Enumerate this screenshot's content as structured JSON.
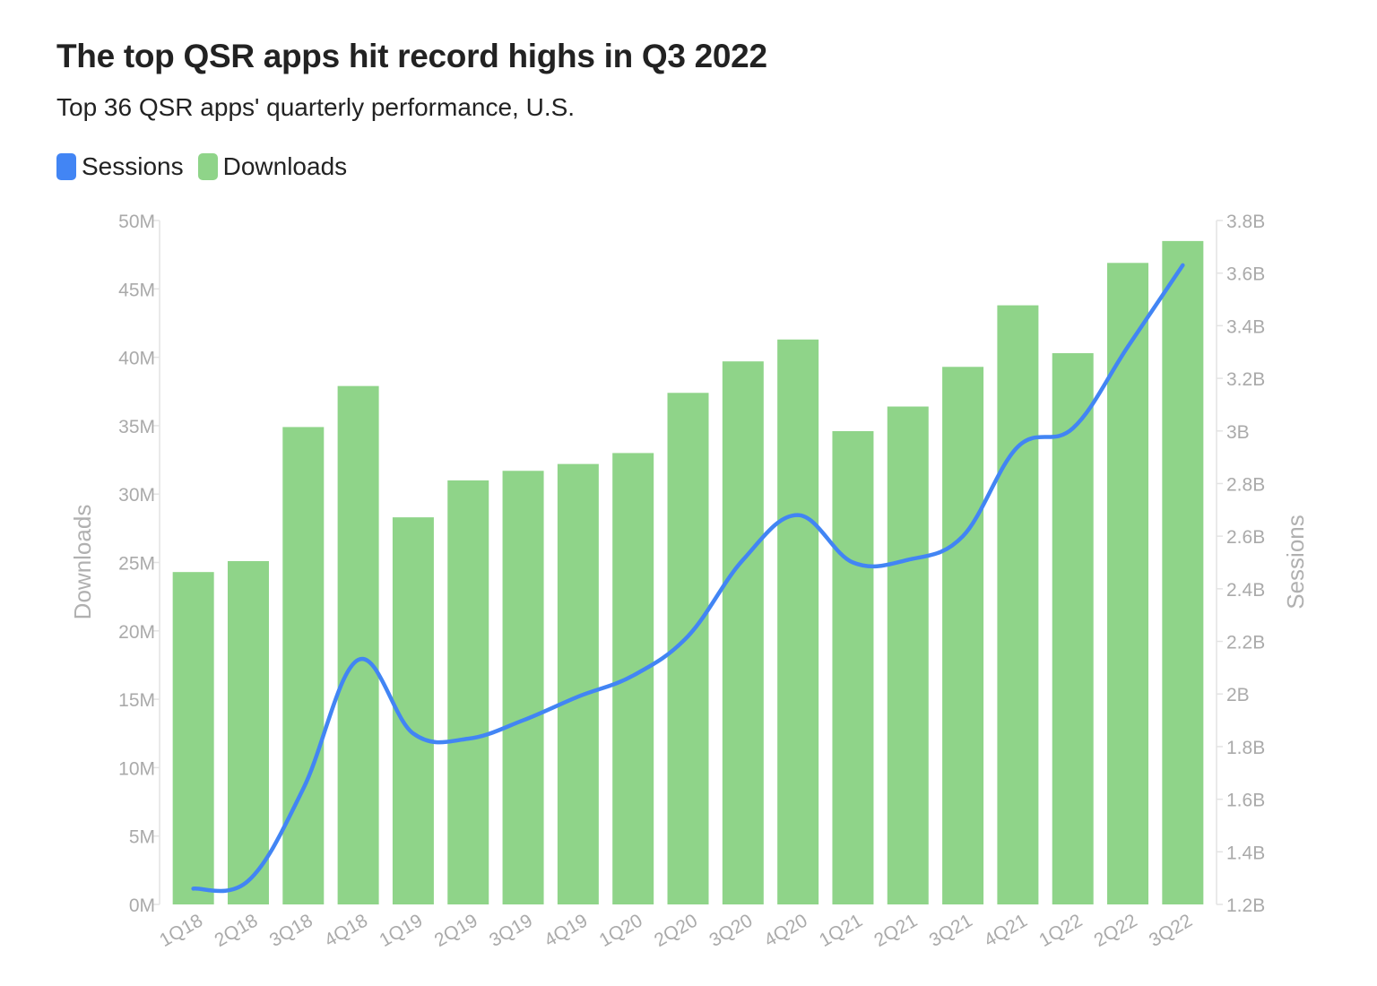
{
  "chart_data": {
    "type": "bar",
    "title": "The top QSR apps hit record highs in Q3 2022",
    "subtitle": "Top 36 QSR apps' quarterly performance, U.S.",
    "legend": [
      {
        "name": "Sessions",
        "color": "#4285f4"
      },
      {
        "name": "Downloads",
        "color": "#8fd489"
      }
    ],
    "legend_position": "top-left",
    "categories": [
      "1Q18",
      "2Q18",
      "3Q18",
      "4Q18",
      "1Q19",
      "2Q19",
      "3Q19",
      "4Q19",
      "1Q20",
      "2Q20",
      "3Q20",
      "4Q20",
      "1Q21",
      "2Q21",
      "3Q21",
      "4Q21",
      "1Q22",
      "2Q22",
      "3Q22"
    ],
    "series": [
      {
        "name": "Downloads",
        "type": "bar",
        "axis": "left",
        "color": "#8fd489",
        "values": [
          24.3,
          25.1,
          34.9,
          37.9,
          28.3,
          31.0,
          31.7,
          32.2,
          33.0,
          37.4,
          39.7,
          41.3,
          34.6,
          36.4,
          39.3,
          43.8,
          40.3,
          46.9,
          48.5
        ]
      },
      {
        "name": "Sessions",
        "type": "line",
        "axis": "right",
        "color": "#4285f4",
        "values": [
          1.26,
          1.29,
          1.64,
          2.13,
          1.85,
          1.83,
          1.9,
          1.99,
          2.07,
          2.22,
          2.51,
          2.68,
          2.5,
          2.51,
          2.6,
          2.94,
          3.01,
          3.32,
          3.63
        ]
      }
    ],
    "y_left": {
      "label": "Downloads",
      "range": [
        0,
        50
      ],
      "ticks": [
        0,
        5,
        10,
        15,
        20,
        25,
        30,
        35,
        40,
        45,
        50
      ],
      "tick_labels": [
        "0M",
        "5M",
        "10M",
        "15M",
        "20M",
        "25M",
        "30M",
        "35M",
        "40M",
        "45M",
        "50M"
      ]
    },
    "y_right": {
      "label": "Sessions",
      "range": [
        1.2,
        3.8
      ],
      "ticks": [
        1.2,
        1.4,
        1.6,
        1.8,
        2.0,
        2.2,
        2.4,
        2.6,
        2.8,
        3.0,
        3.2,
        3.4,
        3.6,
        3.8
      ],
      "tick_labels": [
        "1.2B",
        "1.4B",
        "1.6B",
        "1.8B",
        "2B",
        "2.2B",
        "2.4B",
        "2.6B",
        "2.8B",
        "3B",
        "3.2B",
        "3.4B",
        "3.6B",
        "3.8B"
      ]
    },
    "grid": false
  }
}
